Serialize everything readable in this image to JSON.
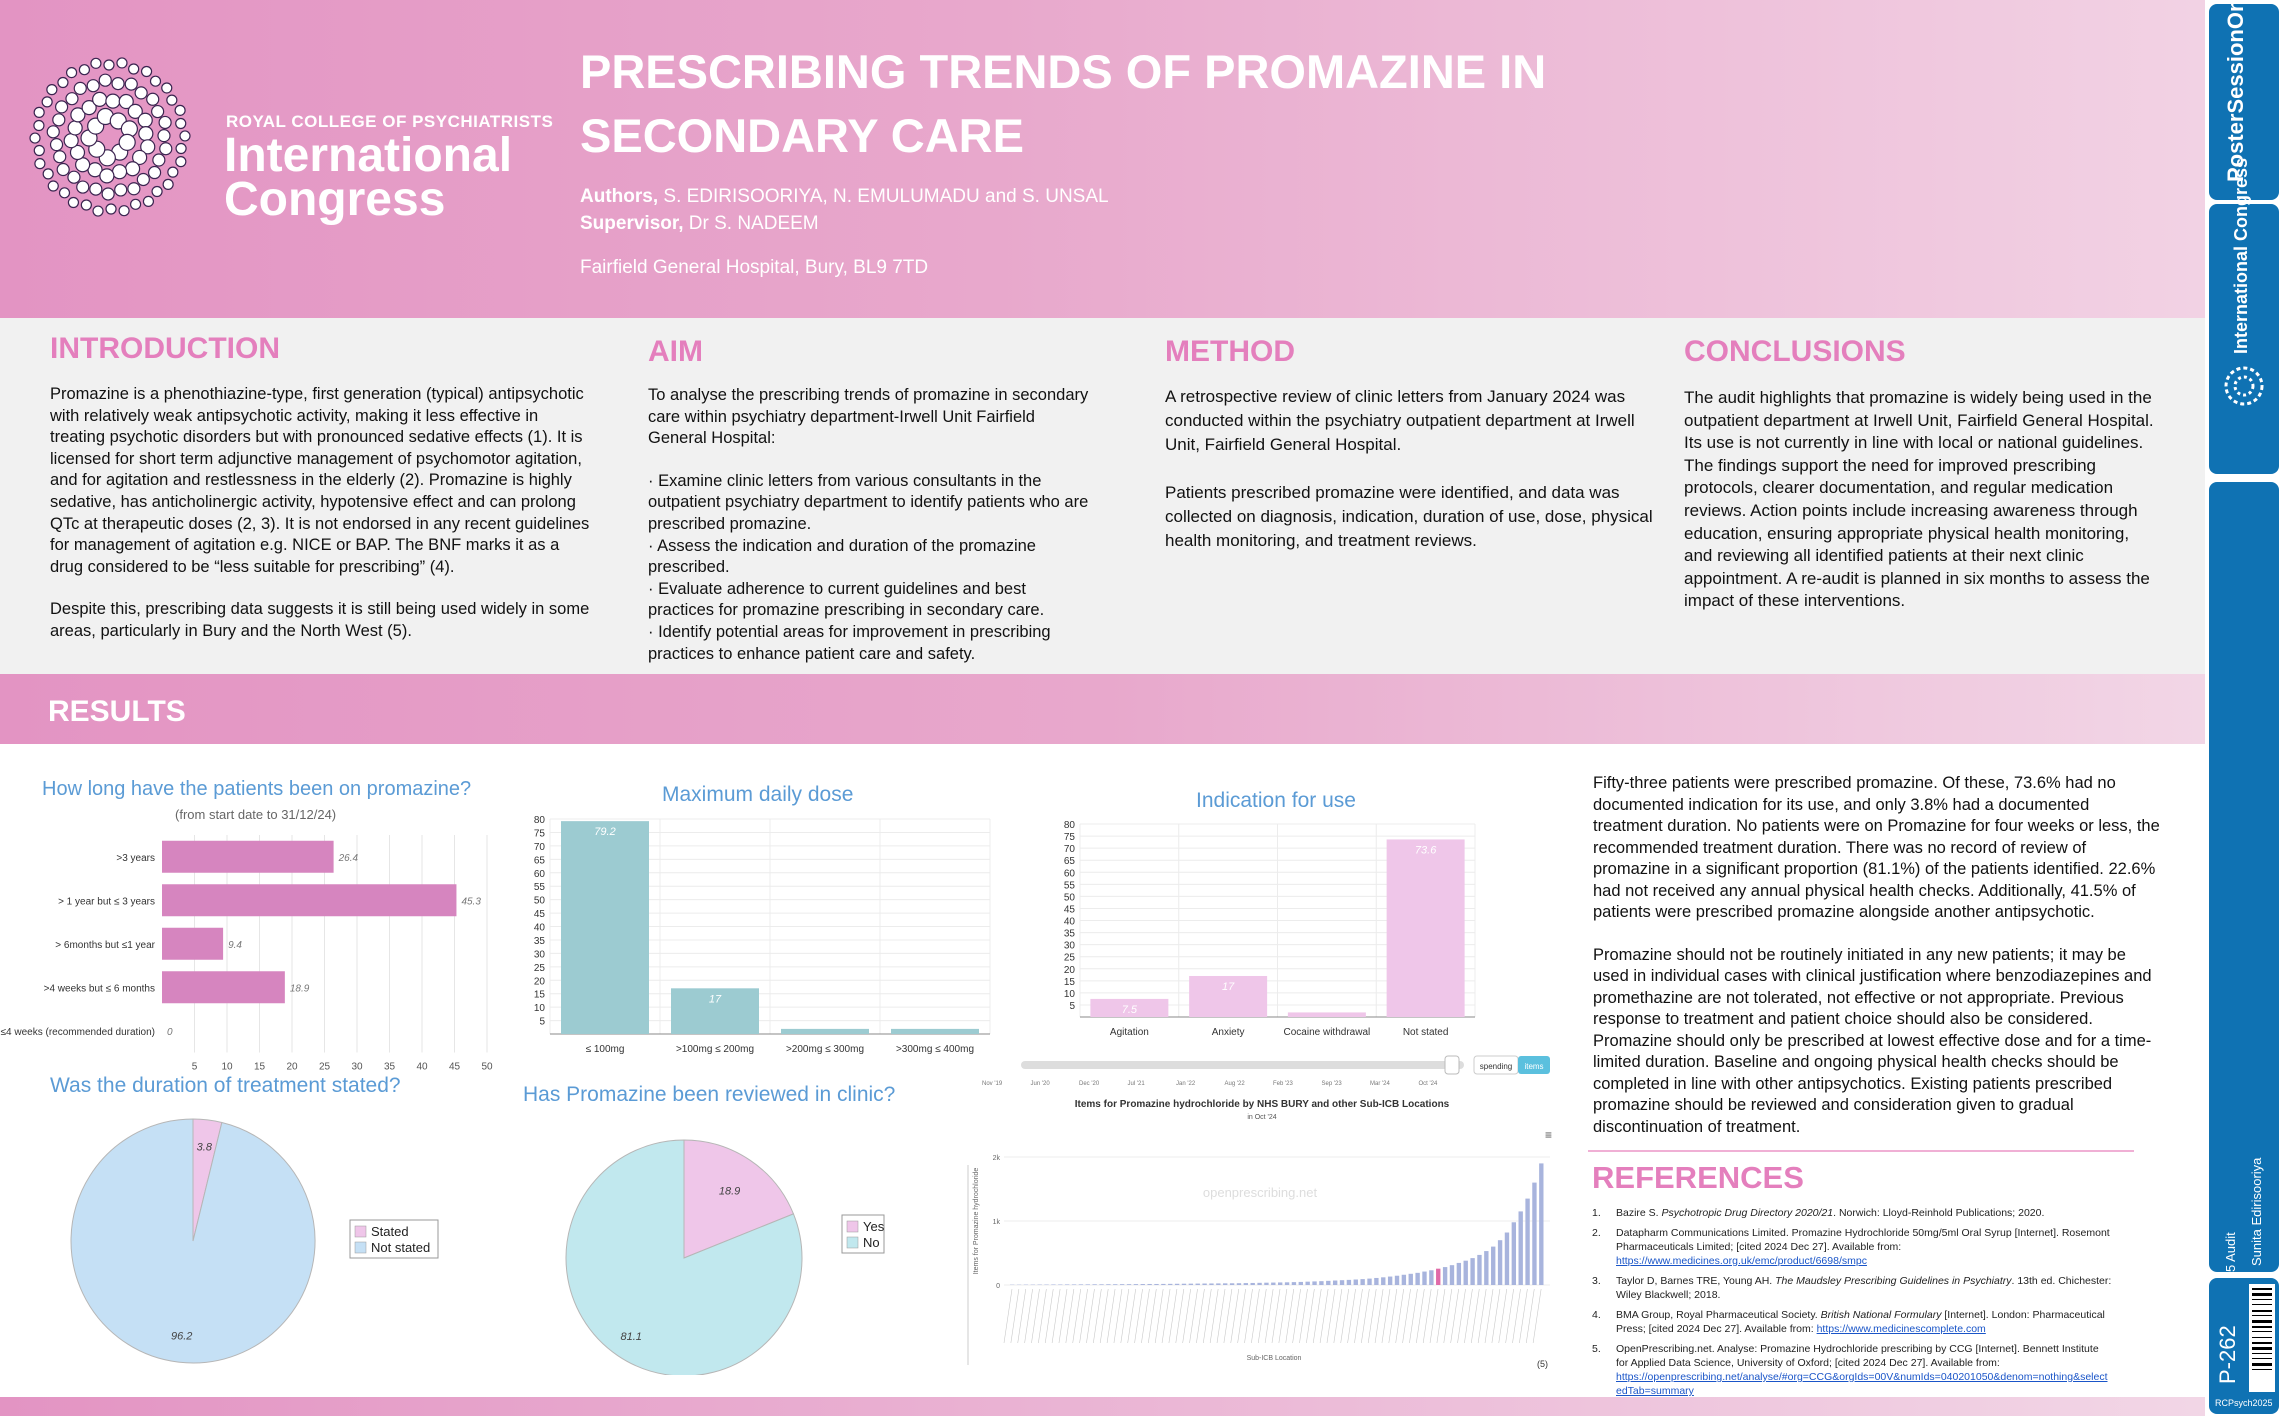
{
  "header": {
    "org_line1": "ROYAL COLLEGE OF PSYCHIATRISTS",
    "org_line2": "International",
    "org_line3": "Congress",
    "title_line1": "PRESCRIBING TRENDS OF PROMAZINE IN",
    "title_line2": "SECONDARY CARE",
    "authors_label": "Authors,",
    "authors": "S. EDIRISOORIYA, N. EMULUMADU and S. UNSAL",
    "supervisor_label": "Supervisor,",
    "supervisor": "Dr S. NADEEM",
    "hospital": "Fairfield General Hospital, Bury, BL9 7TD"
  },
  "introduction": {
    "title": "INTRODUCTION",
    "p1": "Promazine is a phenothiazine-type, first generation (typical) antipsychotic with relatively weak antipsychotic activity, making it less effective in treating psychotic disorders but with pronounced sedative effects (1). It is licensed for short term adjunctive management of psychomotor agitation, and for agitation and restlessness in the elderly (2). Promazine is highly sedative, has anticholinergic activity, hypotensive effect and can prolong QTc at therapeutic doses (2, 3). It is not endorsed in any recent guidelines for management of agitation e.g. NICE or BAP. The BNF marks it as a drug considered to be “less suitable for prescribing” (4).",
    "p2": "Despite this, prescribing data suggests it is still being used widely in some areas, particularly in Bury and the North West (5)."
  },
  "aim": {
    "title": "AIM",
    "p1": "To analyse the prescribing trends of promazine in secondary care within psychiatry department-Irwell Unit Fairfield General Hospital:",
    "bullets": [
      "· Examine clinic letters from various consultants in the outpatient psychiatry department to identify patients who are prescribed promazine.",
      "· Assess the indication and duration of the promazine prescribed.",
      "· Evaluate adherence to current guidelines and best practices for promazine prescribing in secondary care.",
      "· Identify potential areas for improvement in prescribing practices to enhance patient care and safety."
    ]
  },
  "method": {
    "title": "METHOD",
    "p1": "A retrospective review of clinic letters from January 2024 was conducted within the psychiatry outpatient department at Irwell Unit, Fairfield General Hospital.",
    "p2": "Patients prescribed promazine were identified, and data was collected on diagnosis, indication, duration of use, dose, physical health monitoring, and treatment reviews."
  },
  "conclusions": {
    "title": "CONCLUSIONS",
    "p1": "The audit highlights that promazine is widely being used in the outpatient department at Irwell Unit, Fairfield General Hospital. Its use is not currently in line with local or national guidelines. The findings support the need for improved prescribing protocols, clearer documentation, and regular medication reviews. Action points include increasing awareness through education, ensuring appropriate physical health monitoring, and reviewing all identified patients at their next clinic appointment. A re-audit is planned in six months to assess the impact of these interventions."
  },
  "results": {
    "title": "RESULTS",
    "p1": "Fifty-three patients were prescribed promazine. Of these, 73.6% had no documented indication for its use, and only 3.8% had a documented treatment duration. No patients were on Promazine for four weeks or less, the recommended treatment duration. There was no record of review of promazine in a significant proportion (81.1%) of the patients identified. 22.6% had not received any annual physical health checks. Additionally, 41.5% of patients were prescribed promazine alongside another antipsychotic.",
    "p2": "Promazine should not be routinely initiated in any new patients; it may be used in individual cases with clinical justification where benzodiazepines and promethazine are not tolerated, not effective or not appropriate. Previous response to treatment and patient choice should also be considered. Promazine should only be prescribed at lowest effective dose and for a time-limited duration. Baseline and ongoing physical health checks should be completed in line with other antipsychotics. Existing patients prescribed promazine should be reviewed and consideration given to gradual discontinuation of treatment."
  },
  "references": {
    "title": "REFERENCES",
    "items": [
      {
        "num": "1.",
        "pre": "Bazire S. ",
        "em": "Psychotropic Drug Directory 2020/21",
        "post": ". Norwich: Lloyd-Reinhold Publications; 2020.",
        "link": ""
      },
      {
        "num": "2.",
        "pre": "Datapharm Communications Limited. Promazine Hydrochloride 50mg/5ml Oral Syrup [Internet]. Rosemont Pharmaceuticals Limited; [cited 2024 Dec 27]. Available from:",
        "em": "",
        "post": "",
        "link": "https://www.medicines.org.uk/emc/product/6698/smpc"
      },
      {
        "num": "3.",
        "pre": "Taylor D, Barnes TRE, Young AH. ",
        "em": "The Maudsley Prescribing Guidelines in Psychiatry",
        "post": ". 13th ed. Chichester: Wiley Blackwell; 2018.",
        "link": ""
      },
      {
        "num": "4.",
        "pre": "BMA Group, Royal Pharmaceutical Society. ",
        "em": "British National Formulary",
        "post": " [Internet]. London: Pharmaceutical Press; [cited 2024 Dec 27]. Available from: ",
        "link": "https://www.medicinescomplete.com"
      },
      {
        "num": "5.",
        "pre": "OpenPrescribing.net. Analyse: Promazine Hydrochloride prescribing by CCG [Internet]. Bennett Institute for Applied Data Science, University of Oxford; [cited 2024 Dec 27]. Available from:",
        "em": "",
        "post": "",
        "link": "https://openprescribing.net/analyse/#org=CCG&orgIds=00V&numIds=040201050&denom=nothing&selectedTab=summary"
      }
    ]
  },
  "sidebar": {
    "brand1": "PosterSessionOnline",
    "brand2": "International Congress",
    "category": "5 Audit",
    "author": "Sunita Edirisooriya",
    "poster_id": "P-262",
    "event": "RCPsych2025"
  },
  "colors": {
    "pink": "#e47fbd",
    "bar_pink": "#d685bf",
    "teal": "#9ccbd1",
    "light_pink": "#efc6e9",
    "light_blue": "#c5e0f5",
    "blue_title": "#5b9bd5"
  },
  "chart_data": [
    {
      "type": "bar",
      "orientation": "horizontal",
      "title": "How long have the patients been on promazine?",
      "subtitle": "(from start date to 31/12/24)",
      "categories": [
        ">3 years",
        "> 1 year but ≤ 3 years",
        "> 6months but ≤1 year",
        ">4 weeks but ≤ 6 months",
        "≤4 weeks (recommended duration)"
      ],
      "values": [
        26.4,
        45.3,
        9.4,
        18.9,
        0
      ],
      "labels": [
        "26.4",
        "45.3",
        "9.4",
        "18.9",
        "0"
      ],
      "xticks": [
        "5",
        "10",
        "15",
        "20",
        "25",
        "30",
        "35",
        "40",
        "45",
        "50"
      ],
      "xlim": [
        0,
        50
      ]
    },
    {
      "type": "bar",
      "title": "Maximum daily dose",
      "categories": [
        "≤ 100mg",
        ">100mg ≤ 200mg",
        ">200mg ≤ 300mg",
        ">300mg ≤ 400mg"
      ],
      "values": [
        79.2,
        17,
        1.9,
        1.9
      ],
      "labels": [
        "79.2",
        "17",
        "",
        ""
      ],
      "yticks": [
        "5",
        "10",
        "15",
        "20",
        "25",
        "30",
        "35",
        "40",
        "45",
        "50",
        "55",
        "60",
        "65",
        "70",
        "75",
        "80"
      ],
      "ylim": [
        0,
        80
      ]
    },
    {
      "type": "bar",
      "title": "Indication for use",
      "categories": [
        "Agitation",
        "Anxiety",
        "Cocaine withdrawal",
        "Not stated"
      ],
      "values": [
        7.5,
        17,
        1.9,
        73.6
      ],
      "labels": [
        "7.5",
        "17",
        "",
        "73.6"
      ],
      "yticks": [
        "5",
        "10",
        "15",
        "20",
        "25",
        "30",
        "35",
        "40",
        "45",
        "50",
        "55",
        "60",
        "65",
        "70",
        "75",
        "80"
      ],
      "ylim": [
        0,
        80
      ]
    },
    {
      "type": "pie",
      "title": "Was the duration of treatment stated?",
      "categories": [
        "Stated",
        "Not stated"
      ],
      "values": [
        3.8,
        96.2
      ],
      "labels": [
        "3.8",
        "96.2"
      ]
    },
    {
      "type": "pie",
      "title": "Has Promazine  been reviewed in clinic?",
      "categories": [
        "Yes",
        "No"
      ],
      "values": [
        18.9,
        81.1
      ],
      "labels": [
        "18.9",
        "81.1"
      ]
    },
    {
      "type": "bar",
      "title": "Items for Promazine hydrochloride by NHS BURY and other Sub-ICB Locations",
      "subtitle": "in Oct '24",
      "ylabel": "Items for Promazine hydrochloride",
      "xlabel": "Sub-ICB Location",
      "watermark": "openprescribing.net",
      "yticks": [
        "0",
        "1k",
        "2k"
      ],
      "slider_ticks": [
        "Nov '19",
        "Jun '20",
        "Dec '20",
        "Jul '21",
        "Jan '22",
        "Aug '22",
        "Feb '23",
        "Sep '23",
        "Mar '24",
        "Oct '24"
      ],
      "toggle": [
        "spending",
        "items"
      ],
      "source_ref": "(5)",
      "values": [
        5,
        5,
        6,
        6,
        7,
        7,
        8,
        8,
        9,
        9,
        10,
        10,
        11,
        11,
        12,
        12,
        13,
        13,
        14,
        15,
        16,
        16,
        17,
        18,
        19,
        20,
        21,
        22,
        23,
        24,
        25,
        26,
        27,
        28,
        30,
        32,
        34,
        36,
        38,
        40,
        42,
        45,
        48,
        52,
        56,
        60,
        65,
        70,
        75,
        80,
        86,
        92,
        100,
        110,
        120,
        132,
        145,
        160,
        175,
        190,
        210,
        230,
        255,
        280,
        310,
        345,
        380,
        420,
        470,
        530,
        600,
        700,
        820,
        980,
        1150,
        1350,
        1600,
        1900
      ]
    }
  ]
}
